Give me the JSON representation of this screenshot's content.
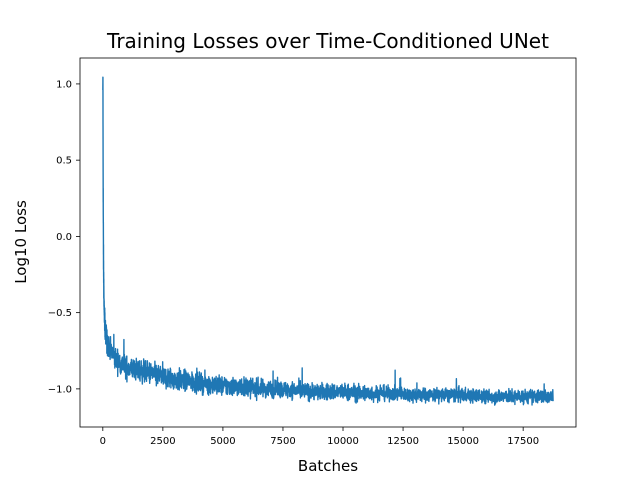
{
  "chart_data": {
    "type": "line",
    "title": "Training Losses over Time-Conditioned UNet",
    "xlabel": "Batches",
    "ylabel": "Log10 Loss",
    "xlim": [
      -950,
      19700
    ],
    "ylim": [
      -1.25,
      1.17
    ],
    "x_ticks": [
      0,
      2500,
      5000,
      7500,
      10000,
      12500,
      15000,
      17500
    ],
    "x_tick_labels": [
      "0",
      "2500",
      "5000",
      "7500",
      "10000",
      "12500",
      "15000",
      "17500"
    ],
    "y_ticks": [
      -1.0,
      -0.5,
      0.0,
      0.5,
      1.0
    ],
    "y_tick_labels": [
      "−1.0",
      "−0.5",
      "0.0",
      "0.5",
      "1.0"
    ],
    "grid": false,
    "line_color": "#1f77b4",
    "series": [
      {
        "x": [
          0,
          5,
          10,
          20,
          30,
          40,
          50,
          60,
          80,
          100,
          150,
          200,
          300,
          400,
          500,
          750,
          1000,
          1500,
          2000,
          2500,
          3000,
          4000,
          5000,
          6000,
          7000,
          8000,
          9000,
          10000,
          11000,
          12000,
          13000,
          14000,
          15000,
          16000,
          17000,
          18000,
          18750
        ],
        "y": [
          0.95,
          1.05,
          0.6,
          0.1,
          -0.2,
          -0.3,
          -0.45,
          -0.5,
          -0.55,
          -0.62,
          -0.66,
          -0.7,
          -0.74,
          -0.77,
          -0.8,
          -0.83,
          -0.86,
          -0.88,
          -0.9,
          -0.92,
          -0.94,
          -0.96,
          -0.98,
          -0.99,
          -1.0,
          -1.01,
          -1.02,
          -1.02,
          -1.03,
          -1.03,
          -1.04,
          -1.04,
          -1.04,
          -1.05,
          -1.05,
          -1.05,
          -1.05
        ],
        "band": [
          0.02,
          0.02,
          0.1,
          0.12,
          0.1,
          0.08,
          0.07,
          0.07,
          0.07,
          0.07,
          0.07,
          0.08,
          0.08,
          0.08,
          0.08,
          0.08,
          0.08,
          0.08,
          0.08,
          0.08,
          0.08,
          0.07,
          0.07,
          0.07,
          0.06,
          0.06,
          0.06,
          0.06,
          0.06,
          0.05,
          0.05,
          0.05,
          0.05,
          0.05,
          0.05,
          0.05,
          0.05
        ]
      }
    ]
  }
}
